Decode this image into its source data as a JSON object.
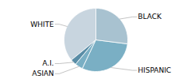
{
  "chart_data": {
    "type": "pie",
    "categories": [
      "WHITE",
      "A.I.",
      "ASIAN",
      "HISPANIC",
      "BLACK"
    ],
    "values": [
      36,
      3,
      4,
      30,
      27
    ],
    "colors": [
      "#c8d5df",
      "#5a8da6",
      "#7aafc4",
      "#7aafc4",
      "#a8c2d0"
    ]
  }
}
